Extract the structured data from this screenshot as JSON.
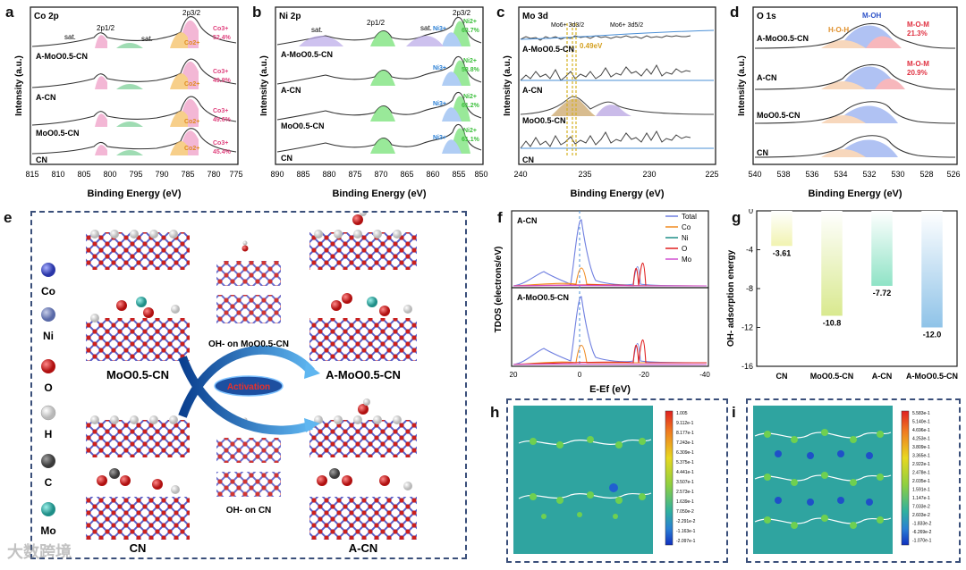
{
  "panels": {
    "a": {
      "letter": "a",
      "title": "Co 2p",
      "xlabel": "Binding Energy (eV)",
      "ylabel": "Intensity (a.u.)",
      "ticks": [
        "815",
        "810",
        "805",
        "800",
        "795",
        "790",
        "785",
        "780",
        "775"
      ],
      "peaks": [
        "sat.",
        "2p1/2",
        "sat.",
        "2p3/2"
      ],
      "samples": [
        "A-MoO0.5-CN",
        "A-CN",
        "MoO0.5-CN",
        "CN"
      ],
      "co3_pct": [
        "52.4%",
        "49.9%",
        "49.6%",
        "45.4%"
      ],
      "co3_label": "Co3+",
      "co2_label": "Co2+"
    },
    "b": {
      "letter": "b",
      "title": "Ni 2p",
      "xlabel": "Binding Energy (eV)",
      "ylabel": "Intensity (a.u.)",
      "ticks": [
        "890",
        "885",
        "880",
        "875",
        "870",
        "865",
        "860",
        "855",
        "850"
      ],
      "peaks": [
        "sat.",
        "2p1/2",
        "sat.",
        "2p3/2"
      ],
      "samples": [
        "A-MoO0.5-CN",
        "A-CN",
        "MoO0.5-CN",
        "CN"
      ],
      "ni2_pct": [
        "63.7%",
        "58.8%",
        "61.2%",
        "61.1%"
      ],
      "ni3_label": "Ni3+",
      "ni2_label": "Ni2+"
    },
    "c": {
      "letter": "c",
      "title": "Mo 3d",
      "xlabel": "Binding Energy (eV)",
      "ylabel": "Intensity (a.u.)",
      "ticks": [
        "240",
        "235",
        "230",
        "225"
      ],
      "labels": [
        "Mo6+ 3d3/2",
        "Mo6+ 3d5/2",
        "0.49eV"
      ],
      "samples": [
        "A-MoO0.5-CN",
        "A-CN",
        "MoO0.5-CN",
        "CN"
      ]
    },
    "d": {
      "letter": "d",
      "title": "O 1s",
      "xlabel": "Binding Energy (eV)",
      "ylabel": "Intensity (a.u.)",
      "ticks": [
        "540",
        "538",
        "536",
        "534",
        "532",
        "530",
        "528",
        "526"
      ],
      "species": [
        "H-O-H",
        "M-OH",
        "M-O-M"
      ],
      "mom_pct": [
        "21.3%",
        "20.9%"
      ],
      "samples": [
        "A-MoO0.5-CN",
        "A-CN",
        "MoO0.5-CN",
        "CN"
      ]
    },
    "e": {
      "letter": "e",
      "legend": [
        "Co",
        "Ni",
        "O",
        "H",
        "C",
        "Mo"
      ],
      "labels": [
        "MoO0.5-CN",
        "A-MoO0.5-CN",
        "CN",
        "A-CN"
      ],
      "center_labels": [
        "OH- on MoO0.5-CN",
        "Activation",
        "OH- on CN"
      ]
    },
    "f": {
      "letter": "f",
      "ylabel": "TDOS (electrons/eV)",
      "xlabel": "E-Ef (eV)",
      "ticks": [
        "20",
        "0",
        "-20",
        "-40"
      ],
      "subplots": [
        "A-CN",
        "A-MoO0.5-CN"
      ],
      "legend": [
        "Total",
        "Co",
        "Ni",
        "O",
        "Mo"
      ]
    },
    "h": {
      "letter": "h",
      "colorbar": [
        "1.005",
        "9.112e-1",
        "8.177e-1",
        "7.243e-1",
        "6.309e-1",
        "5.375e-1",
        "4.441e-1",
        "3.507e-1",
        "2.573e-1",
        "1.639e-1",
        "7.050e-2",
        "-2.291e-2",
        "-1.163e-1",
        "-2.097e-1"
      ]
    },
    "i": {
      "letter": "i",
      "colorbar": [
        "5.583e-1",
        "5.140e-1",
        "4.696e-1",
        "4.253e-1",
        "3.809e-1",
        "3.365e-1",
        "2.922e-1",
        "2.478e-1",
        "2.035e-1",
        "1.591e-1",
        "1.147e-1",
        "7.033e-2",
        "2.603e-2",
        "-1.833e-2",
        "-6.269e-2",
        "-1.070e-1"
      ]
    }
  },
  "chart_data": {
    "type": "bar",
    "panel": "g",
    "title": "",
    "ylabel": "OH- adsorption energy",
    "xlabel": "",
    "categories": [
      "CN",
      "MoO0.5-CN",
      "A-CN",
      "A-MoO0.5-CN"
    ],
    "values": [
      -3.61,
      -10.8,
      -7.72,
      -12.0
    ],
    "value_labels": [
      "-3.61",
      "-10.8",
      "-7.72",
      "-12.0"
    ],
    "ylim": [
      -16,
      0
    ],
    "yticks": [
      "0",
      "-4",
      "-8",
      "-12",
      "-16"
    ],
    "colors": [
      "#f1f3b0",
      "#d9e98f",
      "#8fe3c6",
      "#8fc3e8"
    ]
  },
  "watermark": "大数跨境"
}
